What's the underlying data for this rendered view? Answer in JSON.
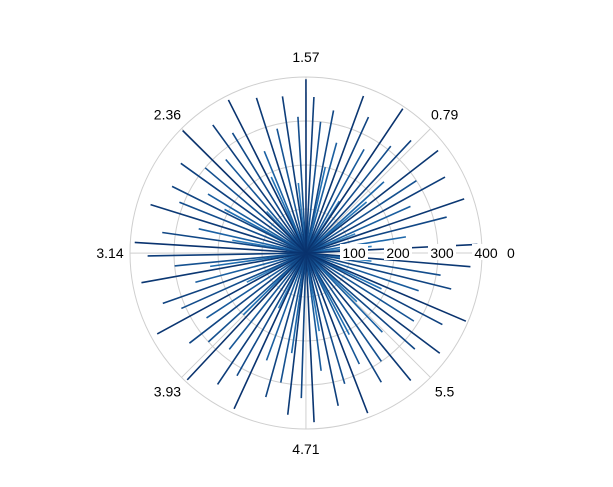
{
  "chart_data": {
    "type": "polar-stem",
    "title": "",
    "angle_unit": "radians",
    "angular_ticks": [
      {
        "value": 0,
        "label": "0"
      },
      {
        "value": 0.785,
        "label": "0.79"
      },
      {
        "value": 1.571,
        "label": "1.57"
      },
      {
        "value": 2.356,
        "label": "2.36"
      },
      {
        "value": 3.142,
        "label": "3.14"
      },
      {
        "value": 3.927,
        "label": "3.93"
      },
      {
        "value": 4.712,
        "label": "4.71"
      },
      {
        "value": 5.498,
        "label": "5.5"
      }
    ],
    "radial_ticks": [
      {
        "value": 100,
        "label": "100"
      },
      {
        "value": 200,
        "label": "200"
      },
      {
        "value": 300,
        "label": "300"
      },
      {
        "value": 400,
        "label": "400"
      }
    ],
    "rlim": [
      0,
      400
    ],
    "grid": true,
    "color_scale": {
      "low": "#6baed6",
      "mid": "#2171b5",
      "high": "#08306b"
    },
    "points": [
      {
        "theta": 0.05,
        "r": 390
      },
      {
        "theta": 0.16,
        "r": 230
      },
      {
        "theta": 0.25,
        "r": 330
      },
      {
        "theta": 0.33,
        "r": 380
      },
      {
        "theta": 0.42,
        "r": 260
      },
      {
        "theta": 0.5,
        "r": 360
      },
      {
        "theta": 0.58,
        "r": 300
      },
      {
        "theta": 0.66,
        "r": 380
      },
      {
        "theta": 0.74,
        "r": 240
      },
      {
        "theta": 0.82,
        "r": 350
      },
      {
        "theta": 0.9,
        "r": 310
      },
      {
        "theta": 0.98,
        "r": 395
      },
      {
        "theta": 1.06,
        "r": 270
      },
      {
        "theta": 1.14,
        "r": 340
      },
      {
        "theta": 1.22,
        "r": 380
      },
      {
        "theta": 1.3,
        "r": 260
      },
      {
        "theta": 1.38,
        "r": 330
      },
      {
        "theta": 1.46,
        "r": 300
      },
      {
        "theta": 1.52,
        "r": 355
      },
      {
        "theta": 1.571,
        "r": 395
      },
      {
        "theta": 1.63,
        "r": 310
      },
      {
        "theta": 1.72,
        "r": 360
      },
      {
        "theta": 1.8,
        "r": 290
      },
      {
        "theta": 1.88,
        "r": 370
      },
      {
        "theta": 1.96,
        "r": 250
      },
      {
        "theta": 2.04,
        "r": 390
      },
      {
        "theta": 2.12,
        "r": 320
      },
      {
        "theta": 2.2,
        "r": 360
      },
      {
        "theta": 2.28,
        "r": 280
      },
      {
        "theta": 2.36,
        "r": 395
      },
      {
        "theta": 2.44,
        "r": 300
      },
      {
        "theta": 2.52,
        "r": 350
      },
      {
        "theta": 2.6,
        "r": 260
      },
      {
        "theta": 2.68,
        "r": 340
      },
      {
        "theta": 2.76,
        "r": 310
      },
      {
        "theta": 2.84,
        "r": 370
      },
      {
        "theta": 2.92,
        "r": 250
      },
      {
        "theta": 3.0,
        "r": 330
      },
      {
        "theta": 3.08,
        "r": 390
      },
      {
        "theta": 3.16,
        "r": 360
      },
      {
        "theta": 3.24,
        "r": 300
      },
      {
        "theta": 3.32,
        "r": 380
      },
      {
        "theta": 3.4,
        "r": 260
      },
      {
        "theta": 3.48,
        "r": 345
      },
      {
        "theta": 3.56,
        "r": 310
      },
      {
        "theta": 3.64,
        "r": 385
      },
      {
        "theta": 3.72,
        "r": 270
      },
      {
        "theta": 3.8,
        "r": 335
      },
      {
        "theta": 3.88,
        "r": 300
      },
      {
        "theta": 3.96,
        "r": 395
      },
      {
        "theta": 4.04,
        "r": 280
      },
      {
        "theta": 4.12,
        "r": 360
      },
      {
        "theta": 4.2,
        "r": 320
      },
      {
        "theta": 4.28,
        "r": 390
      },
      {
        "theta": 4.36,
        "r": 260
      },
      {
        "theta": 4.44,
        "r": 340
      },
      {
        "theta": 4.52,
        "r": 300
      },
      {
        "theta": 4.6,
        "r": 370
      },
      {
        "theta": 4.68,
        "r": 330
      },
      {
        "theta": 4.76,
        "r": 385
      },
      {
        "theta": 4.84,
        "r": 270
      },
      {
        "theta": 4.92,
        "r": 355
      },
      {
        "theta": 5.0,
        "r": 310
      },
      {
        "theta": 5.08,
        "r": 390
      },
      {
        "theta": 5.16,
        "r": 280
      },
      {
        "theta": 5.24,
        "r": 340
      },
      {
        "theta": 5.32,
        "r": 300
      },
      {
        "theta": 5.4,
        "r": 375
      },
      {
        "theta": 5.48,
        "r": 250
      },
      {
        "theta": 5.56,
        "r": 330
      },
      {
        "theta": 5.64,
        "r": 380
      },
      {
        "theta": 5.72,
        "r": 290
      },
      {
        "theta": 5.8,
        "r": 350
      },
      {
        "theta": 5.88,
        "r": 395
      },
      {
        "theta": 5.96,
        "r": 270
      },
      {
        "theta": 6.04,
        "r": 340
      },
      {
        "theta": 6.12,
        "r": 310
      },
      {
        "theta": 6.2,
        "r": 375
      },
      {
        "theta": 0.1,
        "r": 150
      },
      {
        "theta": 0.37,
        "r": 120
      },
      {
        "theta": 0.7,
        "r": 180
      },
      {
        "theta": 1.0,
        "r": 140
      },
      {
        "theta": 1.35,
        "r": 200
      },
      {
        "theta": 1.68,
        "r": 160
      },
      {
        "theta": 2.0,
        "r": 190
      },
      {
        "theta": 2.33,
        "r": 130
      },
      {
        "theta": 2.65,
        "r": 210
      },
      {
        "theta": 2.97,
        "r": 170
      },
      {
        "theta": 3.28,
        "r": 220
      },
      {
        "theta": 3.6,
        "r": 150
      },
      {
        "theta": 3.92,
        "r": 200
      },
      {
        "theta": 4.25,
        "r": 140
      },
      {
        "theta": 4.57,
        "r": 230
      },
      {
        "theta": 4.88,
        "r": 180
      },
      {
        "theta": 5.2,
        "r": 210
      },
      {
        "theta": 5.52,
        "r": 160
      },
      {
        "theta": 5.84,
        "r": 190
      },
      {
        "theta": 6.16,
        "r": 150
      }
    ]
  }
}
